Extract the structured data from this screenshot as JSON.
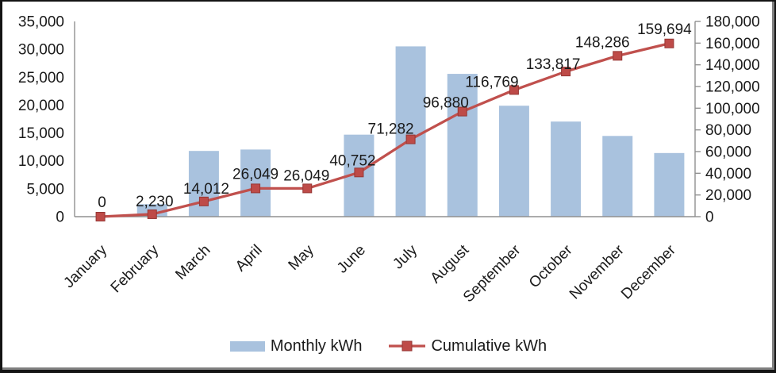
{
  "chart_data": {
    "type": "combo",
    "title": "",
    "categories": [
      "January",
      "February",
      "March",
      "April",
      "May",
      "June",
      "July",
      "August",
      "September",
      "October",
      "November",
      "December"
    ],
    "series": [
      {
        "name": "Monthly kWh",
        "type": "bar",
        "axis": "left",
        "color": "#A9C2DE",
        "values": [
          0,
          2230,
          11782,
          12037,
          0,
          14703,
          30530,
          25598,
          19889,
          17048,
          14469,
          11408
        ]
      },
      {
        "name": "Cumulative kWh",
        "type": "line",
        "axis": "right",
        "color": "#C0504D",
        "marker": "square",
        "marker_fill": "#BE4B48",
        "marker_border": "#963734",
        "values": [
          0,
          2230,
          14012,
          26049,
          26049,
          40752,
          71282,
          96880,
          116769,
          133817,
          148286,
          159694
        ],
        "data_labels": [
          "0",
          "2,230",
          "14,012",
          "26,049",
          "26,049",
          "40,752",
          "71,282",
          "96,880",
          "116,769",
          "133,817",
          "148,286",
          "159,694"
        ]
      }
    ],
    "left_axis": {
      "min": 0,
      "max": 35000,
      "step": 5000,
      "tick_labels": [
        "0",
        "5,000",
        "10,000",
        "15,000",
        "20,000",
        "25,000",
        "30,000",
        "35,000"
      ]
    },
    "right_axis": {
      "min": 0,
      "max": 180000,
      "step": 20000,
      "tick_labels": [
        "0",
        "20,000",
        "40,000",
        "60,000",
        "80,000",
        "100,000",
        "120,000",
        "140,000",
        "160,000",
        "180,000"
      ]
    },
    "legend": {
      "position": "bottom",
      "entries": [
        "Monthly kWh",
        "Cumulative kWh"
      ]
    },
    "gridlines": false,
    "axis_color": "#909090",
    "text_color": "#1a1a1a"
  }
}
